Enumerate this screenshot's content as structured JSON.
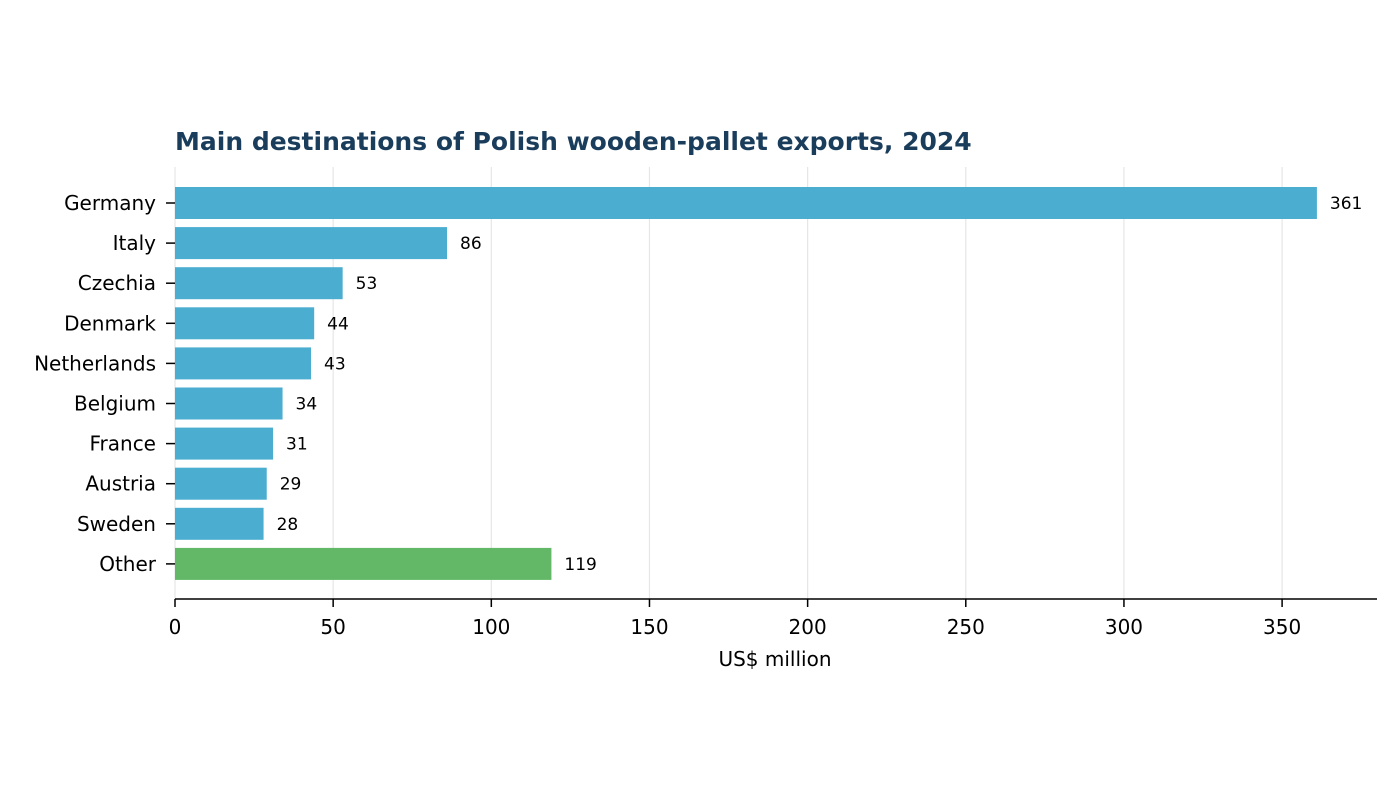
{
  "chart_data": {
    "type": "bar",
    "orientation": "horizontal",
    "title": "Main destinations of Polish wooden-pallet exports, 2024",
    "xlabel": "US$ million",
    "ylabel": "",
    "categories": [
      "Germany",
      "Italy",
      "Czechia",
      "Denmark",
      "Netherlands",
      "Belgium",
      "France",
      "Austria",
      "Sweden",
      "Other"
    ],
    "values": [
      361,
      86,
      53,
      44,
      43,
      34,
      31,
      29,
      28,
      119
    ],
    "data_labels": [
      "361",
      "86",
      "53",
      "44",
      "43",
      "34",
      "31",
      "29",
      "28",
      "119"
    ],
    "xlim": [
      0,
      380
    ],
    "xticks": [
      0,
      50,
      100,
      150,
      200,
      250,
      300,
      350
    ],
    "xtick_labels": [
      "0",
      "50",
      "100",
      "150",
      "200",
      "250",
      "300",
      "350"
    ],
    "grid": "vertical",
    "legend": "none"
  },
  "colors": {
    "title": "#1a3d5c",
    "bar_default": "#4badd0",
    "bar_other": "#62b866",
    "grid": "#e6e6e6",
    "axis": "#000000"
  }
}
